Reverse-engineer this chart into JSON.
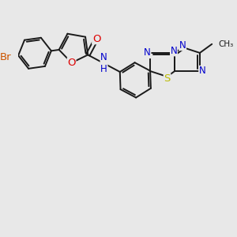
{
  "background_color": "#e8e8e8",
  "atom_colors": {
    "C": "#1a1a1a",
    "N": "#0000cc",
    "O": "#dd0000",
    "S": "#bbbb00",
    "Br": "#cc5500",
    "H": "#1a1a1a"
  },
  "bond_color": "#1a1a1a",
  "bond_width": 1.4,
  "font_size": 8.5,
  "figsize": [
    3.0,
    3.0
  ],
  "dpi": 100,
  "xlim": [
    0,
    10
  ],
  "ylim": [
    0,
    10
  ]
}
